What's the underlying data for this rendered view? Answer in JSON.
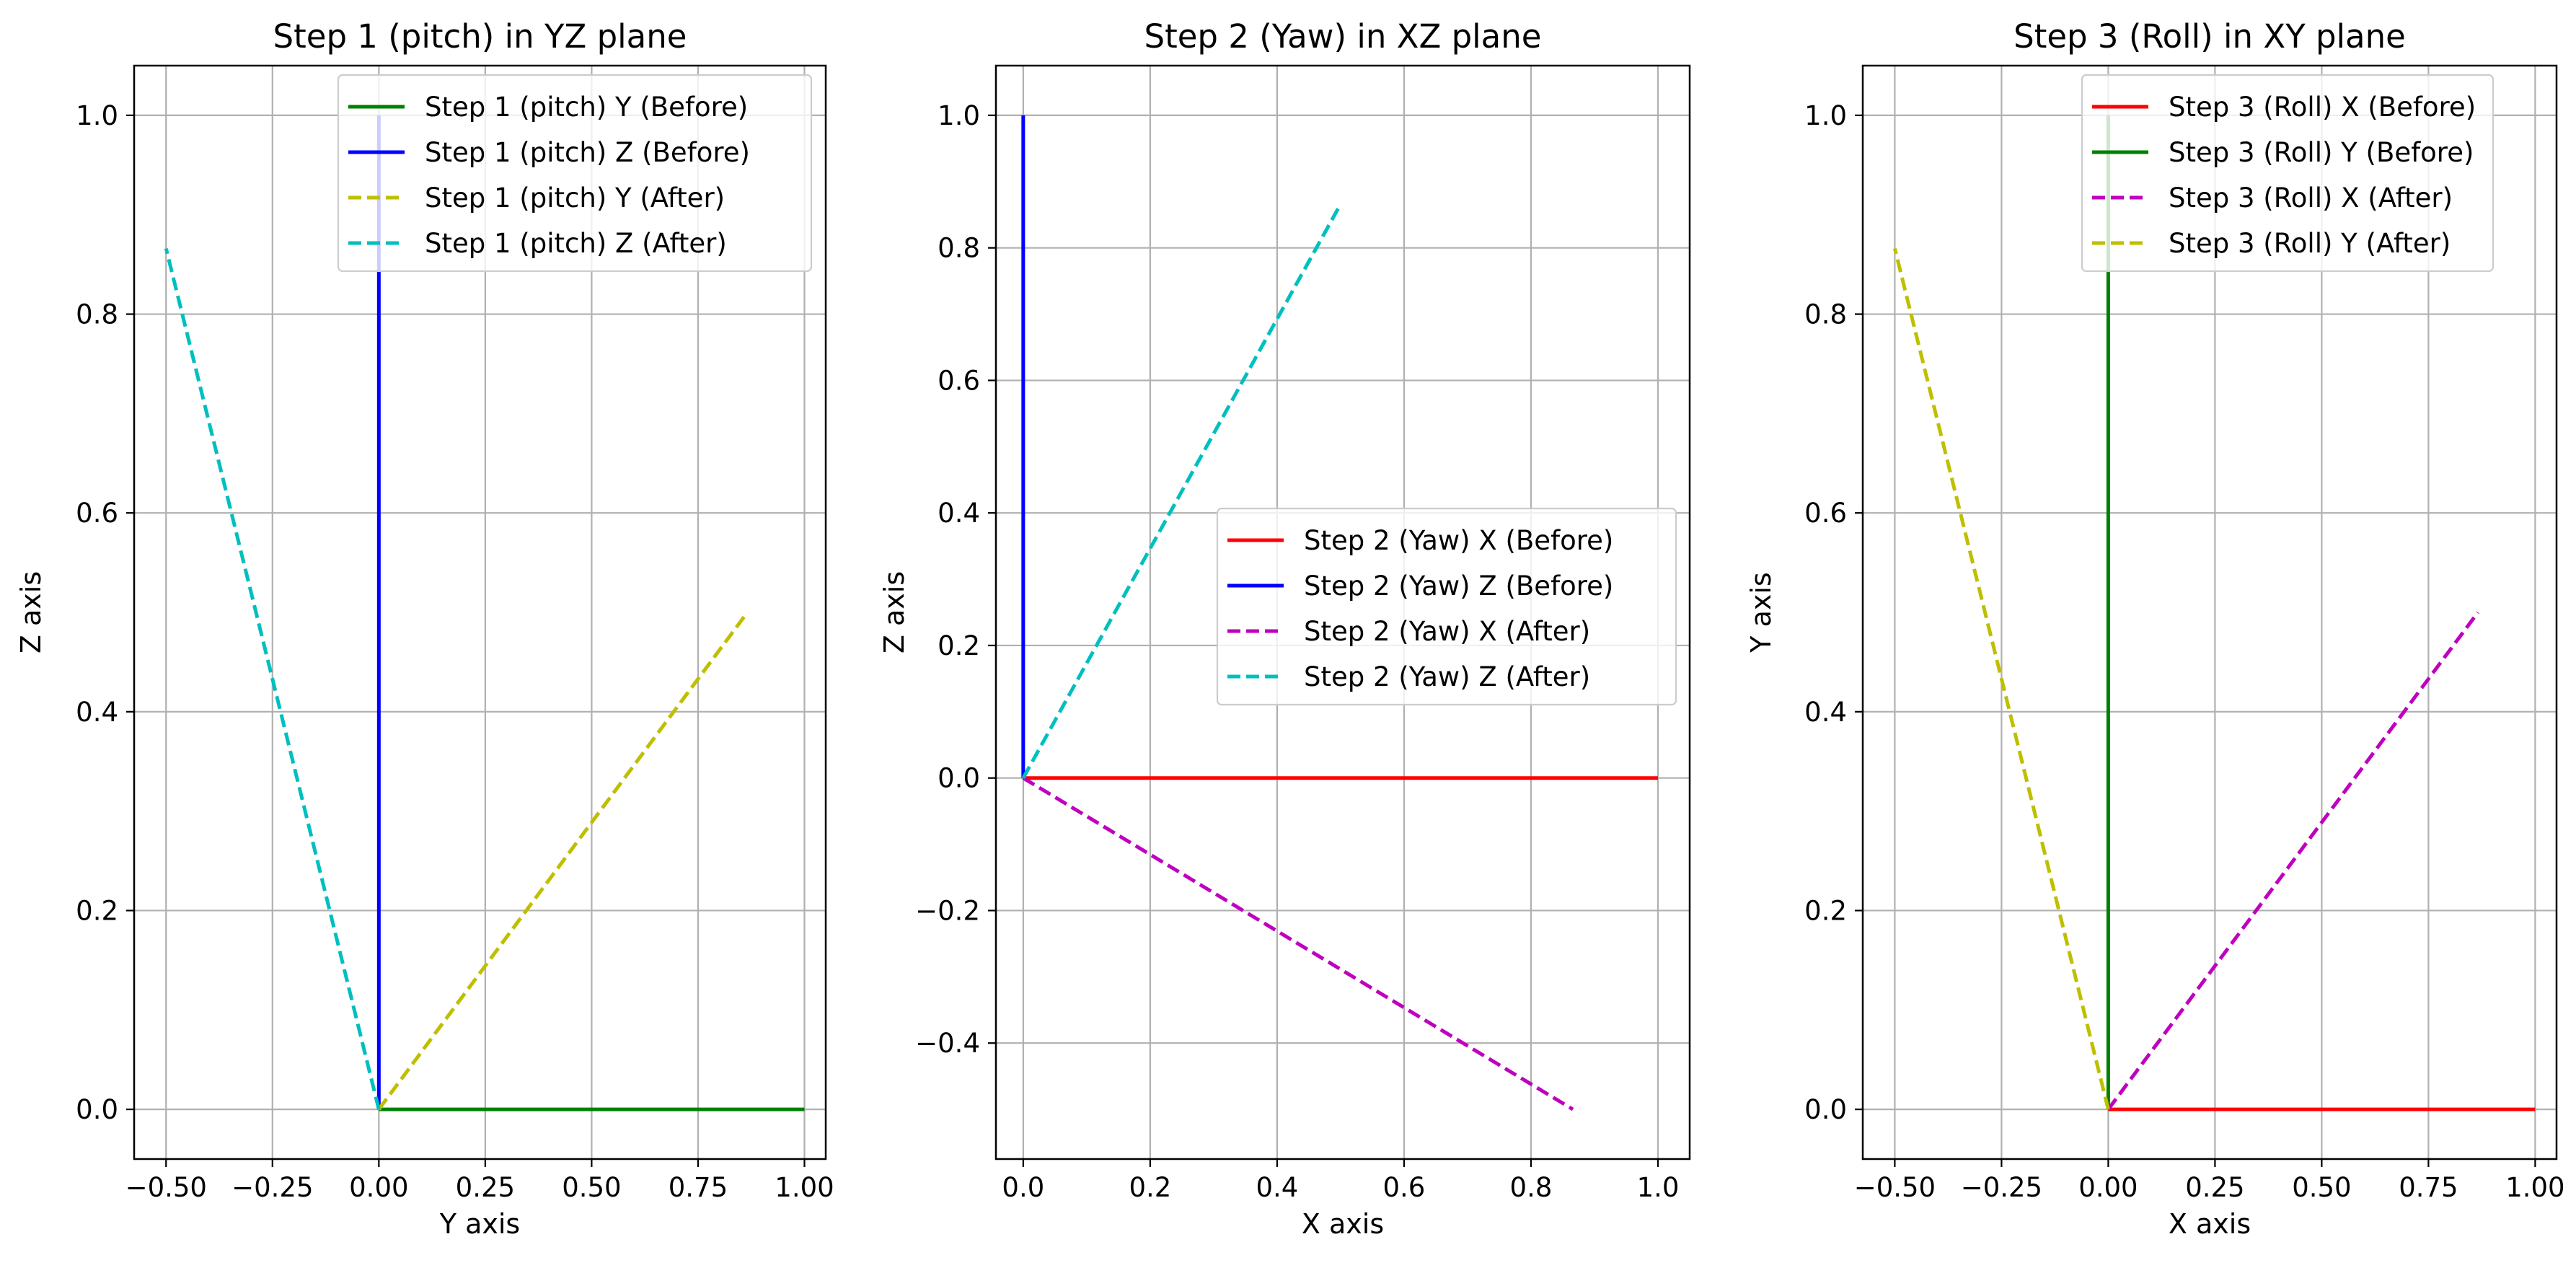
{
  "chart_data": [
    {
      "type": "line",
      "title": "Step 1 (pitch) in YZ plane",
      "xlabel": "Y axis",
      "ylabel": "Z axis",
      "xlim": [
        -0.575,
        1.05
      ],
      "ylim": [
        -0.05,
        1.05
      ],
      "xticks": [
        -0.5,
        -0.25,
        0.0,
        0.25,
        0.5,
        0.75,
        1.0
      ],
      "xtick_labels": [
        "−0.50",
        "−0.25",
        "0.00",
        "0.25",
        "0.50",
        "0.75",
        "1.00"
      ],
      "yticks": [
        0.0,
        0.2,
        0.4,
        0.6,
        0.8,
        1.0
      ],
      "ytick_labels": [
        "0.0",
        "0.2",
        "0.4",
        "0.6",
        "0.8",
        "1.0"
      ],
      "grid": true,
      "legend_position": "top-right",
      "series": [
        {
          "name": "Step 1 (pitch) Y (Before)",
          "color": "#008000",
          "dash": "solid",
          "x": [
            0,
            1
          ],
          "y": [
            0,
            0
          ]
        },
        {
          "name": "Step 1 (pitch) Z (Before)",
          "color": "#0000ff",
          "dash": "solid",
          "x": [
            0,
            0
          ],
          "y": [
            0,
            1
          ]
        },
        {
          "name": "Step 1 (pitch) Y (After)",
          "color": "#bfbf00",
          "dash": "dashed",
          "x": [
            0,
            0.866
          ],
          "y": [
            0,
            0.5
          ]
        },
        {
          "name": "Step 1 (pitch) Z (After)",
          "color": "#00bfbf",
          "dash": "dashed",
          "x": [
            0,
            -0.5
          ],
          "y": [
            0,
            0.866
          ]
        }
      ]
    },
    {
      "type": "line",
      "title": "Step 2 (Yaw) in XZ plane",
      "xlabel": "X axis",
      "ylabel": "Z axis",
      "xlim": [
        -0.043,
        1.05
      ],
      "ylim": [
        -0.575,
        1.075
      ],
      "xticks": [
        0.0,
        0.2,
        0.4,
        0.6,
        0.8,
        1.0
      ],
      "xtick_labels": [
        "0.0",
        "0.2",
        "0.4",
        "0.6",
        "0.8",
        "1.0"
      ],
      "yticks": [
        -0.4,
        -0.2,
        0.0,
        0.2,
        0.4,
        0.6,
        0.8,
        1.0
      ],
      "ytick_labels": [
        "−0.4",
        "−0.2",
        "0.0",
        "0.2",
        "0.4",
        "0.6",
        "0.8",
        "1.0"
      ],
      "grid": true,
      "legend_position": "center-right",
      "series": [
        {
          "name": "Step 2 (Yaw) X (Before)",
          "color": "#ff0000",
          "dash": "solid",
          "x": [
            0,
            1
          ],
          "y": [
            0,
            0
          ]
        },
        {
          "name": "Step 2 (Yaw) Z (Before)",
          "color": "#0000ff",
          "dash": "solid",
          "x": [
            0,
            0
          ],
          "y": [
            0,
            1
          ]
        },
        {
          "name": "Step 2 (Yaw) X (After)",
          "color": "#bf00bf",
          "dash": "dashed",
          "x": [
            0,
            0.866
          ],
          "y": [
            0,
            -0.5
          ]
        },
        {
          "name": "Step 2 (Yaw) Z (After)",
          "color": "#00bfbf",
          "dash": "dashed",
          "x": [
            0,
            0.5
          ],
          "y": [
            0,
            0.866
          ]
        }
      ]
    },
    {
      "type": "line",
      "title": "Step 3 (Roll) in XY plane",
      "xlabel": "X axis",
      "ylabel": "Y axis",
      "xlim": [
        -0.575,
        1.05
      ],
      "ylim": [
        -0.05,
        1.05
      ],
      "xticks": [
        -0.5,
        -0.25,
        0.0,
        0.25,
        0.5,
        0.75,
        1.0
      ],
      "xtick_labels": [
        "−0.50",
        "−0.25",
        "0.00",
        "0.25",
        "0.50",
        "0.75",
        "1.00"
      ],
      "yticks": [
        0.0,
        0.2,
        0.4,
        0.6,
        0.8,
        1.0
      ],
      "ytick_labels": [
        "0.0",
        "0.2",
        "0.4",
        "0.6",
        "0.8",
        "1.0"
      ],
      "grid": true,
      "legend_position": "top-right",
      "series": [
        {
          "name": "Step 3 (Roll) X (Before)",
          "color": "#ff0000",
          "dash": "solid",
          "x": [
            0,
            1
          ],
          "y": [
            0,
            0
          ]
        },
        {
          "name": "Step 3 (Roll) Y (Before)",
          "color": "#008000",
          "dash": "solid",
          "x": [
            0,
            0
          ],
          "y": [
            0,
            1
          ]
        },
        {
          "name": "Step 3 (Roll) X (After)",
          "color": "#bf00bf",
          "dash": "dashed",
          "x": [
            0,
            0.866
          ],
          "y": [
            0,
            0.5
          ]
        },
        {
          "name": "Step 3 (Roll) Y (After)",
          "color": "#bfbf00",
          "dash": "dashed",
          "x": [
            0,
            -0.5
          ],
          "y": [
            0,
            0.866
          ]
        }
      ]
    }
  ]
}
